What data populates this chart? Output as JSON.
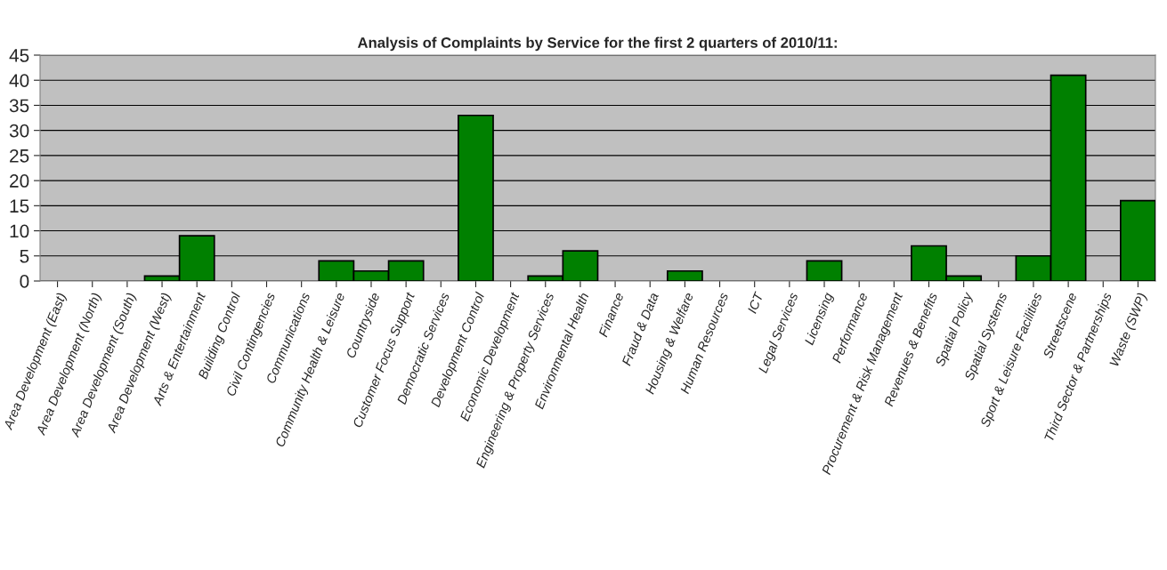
{
  "chart_data": {
    "type": "bar",
    "title": "Analysis of Complaints by Service for the first 2 quarters of 2010/11:",
    "categories": [
      "Area Development (East)",
      "Area Development (North)",
      "Area Development (South)",
      "Area Development (West)",
      "Arts & Entertainment",
      "Building Control",
      "Civil Contingencies",
      "Communications",
      "Community Health & Leisure",
      "Countryside",
      "Customer Focus Support",
      "Democratic Services",
      "Development Control",
      "Economic Development",
      "Engineering & Property Services",
      "Environmental Health",
      "Finance",
      "Fraud & Data",
      "Housing & Welfare",
      "Human Resources",
      "ICT",
      "Legal Services",
      "Licensing",
      "Performance",
      "Procurement & Risk Management",
      "Revenues & Benefits",
      "Spatial Policy",
      "Spatial Systems",
      "Sport & Leisure Facilities",
      "Streetscene",
      "Third Sector & Partnerships",
      "Waste (SWP)"
    ],
    "values": [
      0,
      0,
      0,
      1,
      9,
      0,
      0,
      0,
      4,
      2,
      4,
      0,
      33,
      0,
      1,
      6,
      0,
      0,
      2,
      0,
      0,
      0,
      4,
      0,
      0,
      7,
      1,
      0,
      5,
      41,
      0,
      16
    ],
    "color": "#008000",
    "ylim": [
      0,
      45
    ],
    "yticks": [
      0,
      5,
      10,
      15,
      20,
      25,
      30,
      35,
      40,
      45
    ],
    "grid": "y",
    "legend": false
  }
}
